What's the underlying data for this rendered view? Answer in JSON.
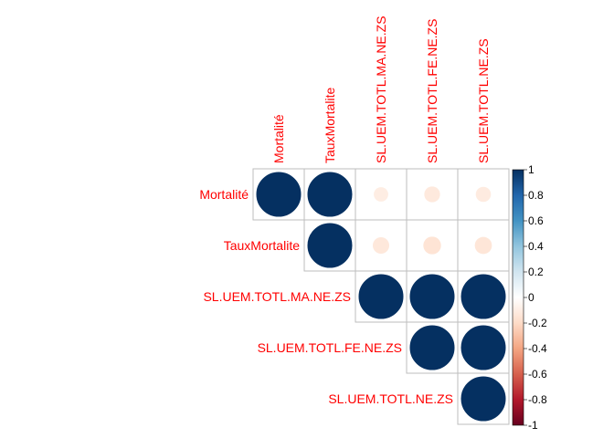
{
  "chart_data": {
    "type": "heatmap",
    "variant": "correlation-matrix-upper-circles",
    "variables": [
      "Mortalité",
      "TauxMortalite",
      "SL.UEM.TOTL.MA.NE.ZS",
      "SL.UEM.TOTL.FE.NE.ZS",
      "SL.UEM.TOTL.NE.ZS"
    ],
    "matrix": [
      [
        1.0,
        1.0,
        -0.1,
        -0.12,
        -0.11
      ],
      [
        1.0,
        1.0,
        -0.13,
        -0.15,
        -0.14
      ],
      [
        -0.1,
        -0.13,
        1.0,
        1.0,
        1.0
      ],
      [
        -0.12,
        -0.15,
        1.0,
        1.0,
        1.0
      ],
      [
        -0.11,
        -0.14,
        1.0,
        1.0,
        1.0
      ]
    ],
    "shape": "upper triangle including diagonal",
    "colorbar": {
      "range": [
        -1,
        1
      ],
      "ticks": [
        "1",
        "0.8",
        "0.6",
        "0.4",
        "0.2",
        "0",
        "-0.2",
        "-0.4",
        "-0.6",
        "-0.8",
        "-1"
      ],
      "colors": [
        "#67001F",
        "#B2182B",
        "#D6604D",
        "#F4A582",
        "#FDDBC7",
        "#FFFFFF",
        "#D1E5F0",
        "#92C5DE",
        "#4393C3",
        "#2166AC",
        "#053061"
      ]
    },
    "label_color": "#FF0000",
    "grid": true,
    "legend": "right"
  }
}
